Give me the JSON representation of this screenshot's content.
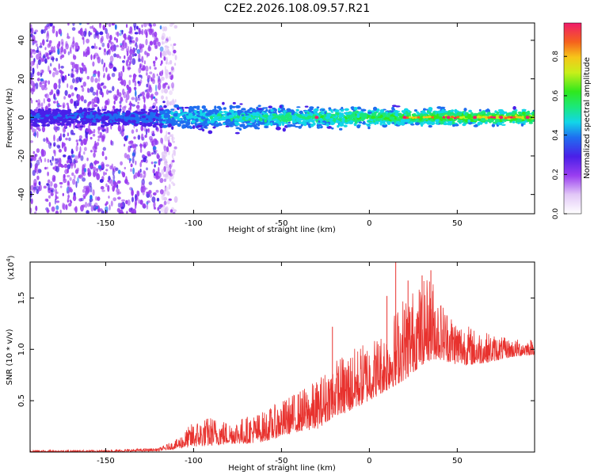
{
  "chart_data": [
    {
      "type": "heatmap",
      "title": "C2E2.2026.108.09.57.R21",
      "xlabel": "Height of straight line (km)",
      "ylabel": "Frequency (Hz)",
      "xlim": [
        -193,
        94
      ],
      "ylim": [
        -50,
        49
      ],
      "xticks": [
        -150,
        -100,
        -50,
        0,
        50
      ],
      "yticks": [
        -40,
        -20,
        0,
        20,
        40
      ],
      "grid": false,
      "colorbar": {
        "label": "Normalized spectral amplitude",
        "range": [
          0,
          0.97
        ],
        "ticks": [
          0.0,
          0.2,
          0.4,
          0.6,
          0.8
        ],
        "tick_labels": [
          "0.0",
          "0.2",
          "0.4",
          "0.6",
          "0.8"
        ]
      },
      "description_points": {
        "noise_region_x": [
          -193,
          -118
        ],
        "band_center_hz": 0,
        "band_halfwidth_hz": [
          8,
          4
        ],
        "strong_peaks_x": [
          -30,
          20,
          45,
          60,
          75,
          90
        ]
      }
    },
    {
      "type": "line",
      "xlabel": "Height of straight line (km)",
      "ylabel": "SNR (10 * v/v)",
      "y_scale_label": "(x10",
      "y_scale_exp": "4",
      "y_scale_close": ")",
      "xlim": [
        -193,
        94
      ],
      "ylim": [
        0,
        1.85
      ],
      "xticks": [
        -150,
        -100,
        -50,
        0,
        50
      ],
      "yticks": [
        0.5,
        1.0,
        1.5
      ],
      "ytick_labels": [
        "0.5",
        "1.0",
        "1.5"
      ],
      "series": [
        {
          "name": "SNR",
          "color": "#e8322e",
          "envelope": {
            "x": [
              -193,
              -150,
              -120,
              -110,
              -100,
              -90,
              -80,
              -70,
              -60,
              -50,
              -40,
              -30,
              -25,
              -20,
              -10,
              0,
              10,
              15,
              20,
              30,
              35,
              40,
              50,
              60,
              70,
              80,
              94
            ],
            "base": [
              0.0,
              0.0,
              0.01,
              0.03,
              0.05,
              0.06,
              0.08,
              0.08,
              0.1,
              0.15,
              0.2,
              0.22,
              0.28,
              0.35,
              0.4,
              0.5,
              0.6,
              0.65,
              0.7,
              0.85,
              0.9,
              0.9,
              0.85,
              0.85,
              0.88,
              0.92,
              0.95
            ],
            "peak": [
              0.02,
              0.02,
              0.04,
              0.12,
              0.3,
              0.35,
              0.3,
              0.35,
              0.4,
              0.5,
              0.6,
              0.7,
              0.8,
              0.9,
              1.0,
              1.1,
              1.2,
              1.4,
              1.55,
              1.65,
              1.75,
              1.5,
              1.3,
              1.2,
              1.15,
              1.1,
              1.1
            ]
          },
          "spikes": [
            [
              -21,
              1.22
            ],
            [
              -14,
              0.75
            ],
            [
              10,
              1.52
            ],
            [
              15,
              1.86
            ],
            [
              22,
              1.67
            ],
            [
              30,
              1.72
            ],
            [
              35,
              1.77
            ]
          ]
        }
      ]
    }
  ]
}
